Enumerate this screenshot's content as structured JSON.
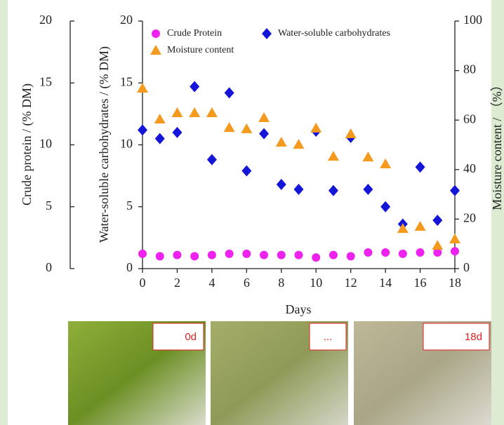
{
  "chart_data": {
    "type": "scatter",
    "x_label": "Days",
    "y_label": "Water-soluble carbohydrates / (% DM)",
    "y2_label": "Moisture content / （%）",
    "y3_label": "Crude protein / (% DM)",
    "x": [
      0,
      1,
      2,
      3,
      4,
      5,
      6,
      7,
      8,
      9,
      10,
      11,
      12,
      13,
      14,
      15,
      16,
      17,
      18
    ],
    "xlim": [
      0,
      18
    ],
    "xticks": [
      0,
      2,
      4,
      6,
      8,
      10,
      12,
      14,
      16,
      18
    ],
    "ylim": [
      0,
      20
    ],
    "yticks": [
      0,
      5,
      10,
      15,
      20
    ],
    "y2lim": [
      0,
      100
    ],
    "y2ticks": [
      0,
      20,
      40,
      60,
      80,
      100
    ],
    "y3lim": [
      0,
      20
    ],
    "y3ticks": [
      0,
      5,
      10,
      15,
      20
    ],
    "series": [
      {
        "name": "Crude Protein",
        "color": "#ee22ee",
        "marker": "circle",
        "axis": "y3",
        "values": [
          1.2,
          1.0,
          1.1,
          1.0,
          1.1,
          1.2,
          1.2,
          1.1,
          1.1,
          1.1,
          0.9,
          1.1,
          1.0,
          1.3,
          1.3,
          1.2,
          1.3,
          1.3,
          1.4
        ]
      },
      {
        "name": "Water-soluble carbohydrates",
        "color": "#1515d8",
        "marker": "diamond",
        "values": [
          11.2,
          10.5,
          11.0,
          14.7,
          8.8,
          14.2,
          7.9,
          10.9,
          6.8,
          6.4,
          11.1,
          6.3,
          10.6,
          6.4,
          5.0,
          3.6,
          8.2,
          3.9,
          6.3
        ]
      },
      {
        "name": "Moisture content",
        "color": "#f39a1f",
        "marker": "triangle",
        "axis": "y2",
        "values": [
          72.8,
          60.3,
          62.9,
          62.9,
          62.9,
          56.9,
          56.4,
          60.9,
          51.0,
          50.1,
          56.7,
          45.3,
          54.4,
          45.0,
          42.2,
          16.1,
          17.0,
          9.3,
          11.9
        ]
      }
    ]
  },
  "photo_labels": [
    "0d",
    "...",
    "18d"
  ]
}
